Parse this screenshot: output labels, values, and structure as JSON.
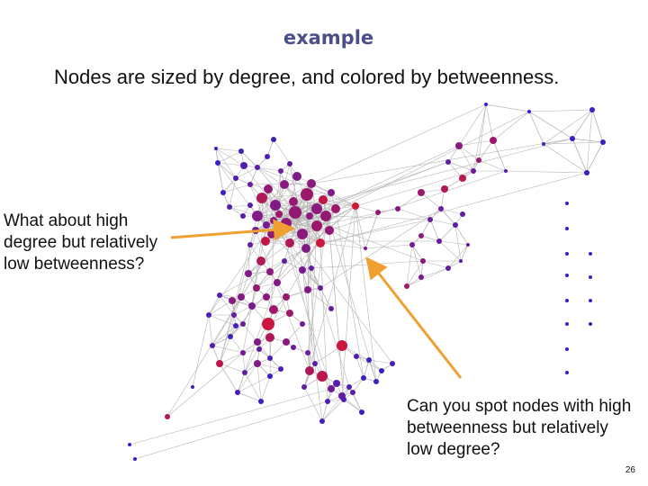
{
  "slide": {
    "title": "example",
    "subtitle": "Nodes are sized by degree, and colored by betweenness.",
    "callout_left": [
      "What about high",
      "degree but relatively",
      "low betweenness?"
    ],
    "callout_right": [
      "Can you spot nodes with high",
      "betweenness but relatively",
      "low degree?"
    ],
    "page_number": "26"
  },
  "graph": {
    "node_color_low_betweenness": "#2b1fd6",
    "node_color_high_betweenness": "#e81423",
    "edge_color": "#b5b5b5",
    "arrow_color": "#f0a030"
  }
}
